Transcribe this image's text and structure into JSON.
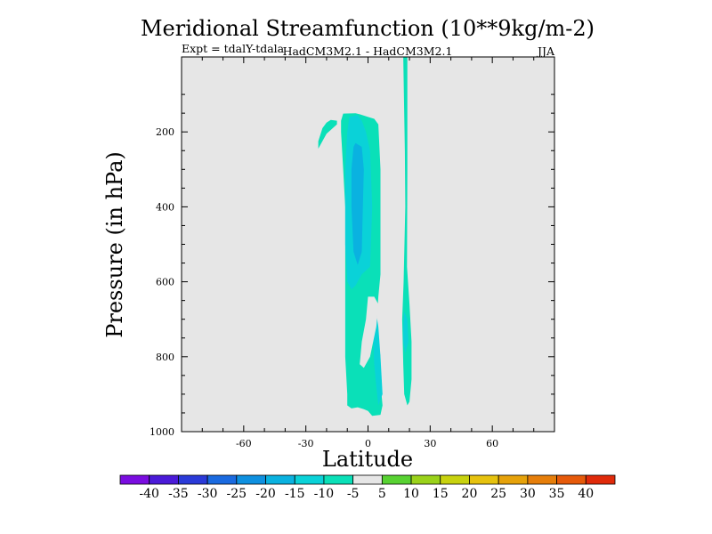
{
  "chart_data": {
    "type": "heatmap",
    "title": "Meridional Streamfunction (10**9kg/m-2)",
    "subtitle_left": "Expt = tdalY-tdala",
    "subtitle_center": "HadCM3M2.1 - HadCM3M2.1",
    "subtitle_right": "JJA",
    "xlabel": "Latitude",
    "ylabel": "Pressure (in hPa)",
    "xlim": [
      -90,
      90
    ],
    "ylim": [
      1000,
      0
    ],
    "x_ticks": [
      -60,
      -30,
      0,
      30,
      60
    ],
    "y_ticks": [
      200,
      400,
      600,
      800,
      1000
    ],
    "background_color": "#e6e6e6",
    "colorbar": {
      "labels": [
        "-40",
        "-35",
        "-30",
        "-25",
        "-20",
        "-15",
        "-10",
        "-5",
        "5",
        "10",
        "15",
        "20",
        "25",
        "30",
        "35",
        "40"
      ],
      "colors": [
        "#7a0de0",
        "#4a1ad8",
        "#2a3ad8",
        "#1a6ae0",
        "#0e90e0",
        "#0ab2e0",
        "#0ad2d8",
        "#0ae0b8",
        "#e6e6e6",
        "#58d232",
        "#9ad21a",
        "#c8d20e",
        "#e6c20e",
        "#e6a20a",
        "#e67e0a",
        "#e65a0a",
        "#e02a0a"
      ]
    },
    "regions": [
      {
        "level": "-10 to -5",
        "color": "#0ae0b8",
        "points": [
          [
            -12,
            151
          ],
          [
            -6,
            150
          ],
          [
            -4,
            153
          ],
          [
            0,
            160
          ],
          [
            3,
            165
          ],
          [
            5,
            180
          ],
          [
            6,
            300
          ],
          [
            6,
            580
          ],
          [
            5,
            640
          ],
          [
            4,
            720
          ],
          [
            6,
            800
          ],
          [
            6,
            870
          ],
          [
            7,
            930
          ],
          [
            6,
            955
          ],
          [
            2,
            958
          ],
          [
            0,
            945
          ],
          [
            -2,
            940
          ],
          [
            -5,
            935
          ],
          [
            -8,
            938
          ],
          [
            -10,
            930
          ],
          [
            -10,
            900
          ],
          [
            -11,
            800
          ],
          [
            -11,
            600
          ],
          [
            -11,
            400
          ],
          [
            -12,
            300
          ],
          [
            -13,
            200
          ],
          [
            -13,
            170
          ]
        ]
      },
      {
        "level": "-10 to -5",
        "color": "#0ae0b8",
        "points": [
          [
            -18,
            168
          ],
          [
            -15,
            170
          ],
          [
            -15,
            180
          ],
          [
            -20,
            205
          ],
          [
            -24,
            245
          ],
          [
            -24,
            225
          ],
          [
            -22,
            190
          ],
          [
            -20,
            175
          ]
        ]
      },
      {
        "level": "-10 to -5",
        "color": "#0ae0b8",
        "points": [
          [
            17,
            0
          ],
          [
            19,
            0
          ],
          [
            19,
            300
          ],
          [
            18.8,
            560
          ],
          [
            20,
            660
          ],
          [
            21,
            760
          ],
          [
            21,
            860
          ],
          [
            20,
            920
          ],
          [
            19,
            930
          ],
          [
            17.5,
            900
          ],
          [
            17,
            820
          ],
          [
            16.5,
            700
          ],
          [
            17.2,
            600
          ],
          [
            18,
            400
          ],
          [
            17.8,
            250
          ]
        ]
      },
      {
        "level": "-15 to -10",
        "color": "#0ad2d8",
        "points": [
          [
            -9,
            160
          ],
          [
            -5,
            155
          ],
          [
            -3,
            170
          ],
          [
            -1,
            200
          ],
          [
            1,
            250
          ],
          [
            2,
            400
          ],
          [
            1,
            560
          ],
          [
            -3,
            580
          ],
          [
            -6,
            610
          ],
          [
            -8,
            620
          ],
          [
            -10,
            600
          ],
          [
            -11,
            500
          ],
          [
            -11,
            300
          ],
          [
            -10,
            200
          ]
        ]
      },
      {
        "level": "-15 to -10",
        "color": "#0ad2d8",
        "points": [
          [
            3,
            650
          ],
          [
            5,
            720
          ],
          [
            6,
            800
          ],
          [
            7,
            900
          ],
          [
            5,
            930
          ],
          [
            4,
            880
          ],
          [
            3,
            820
          ],
          [
            2.5,
            760
          ]
        ]
      },
      {
        "level": "-15 to -10",
        "color": "#0ad2d8",
        "points": [
          [
            17.5,
            680
          ],
          [
            19,
            700
          ],
          [
            19.5,
            760
          ],
          [
            18,
            790
          ],
          [
            17,
            760
          ],
          [
            17,
            720
          ]
        ]
      },
      {
        "level": "-20 to -15",
        "color": "#0ab2e0",
        "points": [
          [
            -6,
            230
          ],
          [
            -3,
            240
          ],
          [
            -2,
            300
          ],
          [
            -2.5,
            400
          ],
          [
            -3,
            520
          ],
          [
            -5,
            555
          ],
          [
            -7,
            520
          ],
          [
            -8,
            400
          ],
          [
            -8,
            300
          ],
          [
            -7,
            240
          ]
        ]
      },
      {
        "level": "-5 to 5",
        "color": "#e6e6e6",
        "points": [
          [
            0,
            640
          ],
          [
            3,
            640
          ],
          [
            5,
            660
          ],
          [
            4,
            720
          ],
          [
            1,
            800
          ],
          [
            -2,
            830
          ],
          [
            -4,
            820
          ],
          [
            -3,
            760
          ],
          [
            -1,
            700
          ]
        ]
      }
    ]
  }
}
